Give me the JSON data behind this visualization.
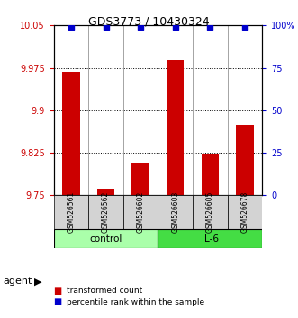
{
  "title": "GDS3773 / 10430324",
  "samples": [
    "GSM526561",
    "GSM526562",
    "GSM526602",
    "GSM526603",
    "GSM526605",
    "GSM526678"
  ],
  "bar_values": [
    9.968,
    9.762,
    9.808,
    9.988,
    9.824,
    9.874
  ],
  "percentile_values": [
    99,
    99,
    99,
    99,
    99,
    99
  ],
  "ylim_left": [
    9.75,
    10.05
  ],
  "ylim_right": [
    0,
    100
  ],
  "left_ticks": [
    9.75,
    9.825,
    9.9,
    9.975,
    10.05
  ],
  "right_ticks": [
    0,
    25,
    50,
    75,
    100
  ],
  "right_tick_labels": [
    "0",
    "25",
    "50",
    "75",
    "100%"
  ],
  "left_tick_labels": [
    "9.75",
    "9.825",
    "9.9",
    "9.975",
    "10.05"
  ],
  "bar_color": "#cc0000",
  "dot_color": "#0000cc",
  "grid_color": "#000000",
  "control_color": "#aaffaa",
  "il6_color": "#44dd44",
  "control_label": "control",
  "il6_label": "IL-6",
  "agent_label": "agent",
  "legend_bar_label": "transformed count",
  "legend_dot_label": "percentile rank within the sample",
  "control_samples": [
    0,
    1,
    2
  ],
  "il6_samples": [
    3,
    4,
    5
  ]
}
